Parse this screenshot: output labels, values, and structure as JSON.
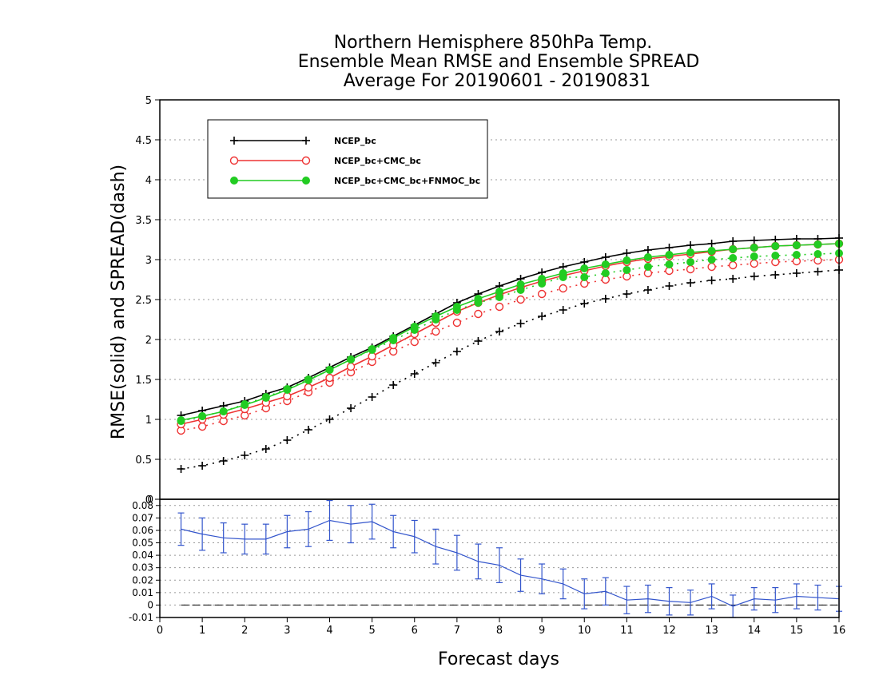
{
  "title": {
    "line1": "Northern Hemisphere 850hPa Temp.",
    "line2": "Ensemble Mean RMSE and Ensemble SPREAD",
    "line3": "Average For 20190601 - 20190831"
  },
  "chart_data": [
    {
      "type": "line",
      "ylabel": "RMSE(solid) and SPREAD(dash)",
      "xlim": [
        0,
        16
      ],
      "ylim": [
        0,
        5
      ],
      "yticks": [
        "0",
        "0.5",
        "1",
        "1.5",
        "2",
        "2.5",
        "3",
        "3.5",
        "4",
        "4.5",
        "5"
      ],
      "grid": true,
      "legend_position": "top-left",
      "x": [
        0.5,
        1,
        1.5,
        2,
        2.5,
        3,
        3.5,
        4,
        4.5,
        5,
        5.5,
        6,
        6.5,
        7,
        7.5,
        8,
        8.5,
        9,
        9.5,
        10,
        10.5,
        11,
        11.5,
        12,
        12.5,
        13,
        13.5,
        14,
        14.5,
        15,
        15.5,
        16
      ],
      "series": [
        {
          "name": "NCEP_bc",
          "color": "#000000",
          "marker": "plus",
          "rmse": [
            1.05,
            1.11,
            1.17,
            1.23,
            1.32,
            1.4,
            1.52,
            1.65,
            1.78,
            1.9,
            2.04,
            2.18,
            2.32,
            2.46,
            2.57,
            2.67,
            2.76,
            2.84,
            2.91,
            2.97,
            3.03,
            3.08,
            3.12,
            3.15,
            3.18,
            3.2,
            3.23,
            3.24,
            3.25,
            3.26,
            3.26,
            3.27
          ],
          "spread": [
            0.38,
            0.42,
            0.48,
            0.55,
            0.63,
            0.74,
            0.87,
            1.0,
            1.14,
            1.28,
            1.43,
            1.57,
            1.71,
            1.85,
            1.98,
            2.1,
            2.2,
            2.29,
            2.37,
            2.45,
            2.51,
            2.57,
            2.62,
            2.67,
            2.71,
            2.74,
            2.76,
            2.79,
            2.81,
            2.83,
            2.85,
            2.87
          ]
        },
        {
          "name": "NCEP_bc+CMC_bc",
          "color": "#ee3333",
          "marker": "open-circle",
          "rmse": [
            0.94,
            1.0,
            1.06,
            1.13,
            1.21,
            1.29,
            1.4,
            1.52,
            1.66,
            1.79,
            1.93,
            2.07,
            2.21,
            2.35,
            2.46,
            2.56,
            2.65,
            2.73,
            2.8,
            2.86,
            2.92,
            2.97,
            3.01,
            3.04,
            3.07,
            3.1,
            3.13,
            3.15,
            3.17,
            3.18,
            3.19,
            3.2
          ],
          "spread": [
            0.86,
            0.91,
            0.98,
            1.05,
            1.14,
            1.23,
            1.34,
            1.46,
            1.59,
            1.72,
            1.85,
            1.97,
            2.1,
            2.21,
            2.32,
            2.41,
            2.5,
            2.57,
            2.64,
            2.7,
            2.75,
            2.79,
            2.83,
            2.86,
            2.88,
            2.91,
            2.93,
            2.95,
            2.97,
            2.98,
            2.99,
            3.0
          ]
        },
        {
          "name": "NCEP_bc+CMC_bc+FNMOC_bc",
          "color": "#22cc22",
          "marker": "filled-circle",
          "rmse": [
            0.99,
            1.04,
            1.1,
            1.18,
            1.27,
            1.37,
            1.49,
            1.62,
            1.75,
            1.88,
            2.02,
            2.16,
            2.29,
            2.41,
            2.51,
            2.6,
            2.69,
            2.76,
            2.83,
            2.89,
            2.94,
            2.99,
            3.03,
            3.06,
            3.09,
            3.11,
            3.13,
            3.15,
            3.17,
            3.18,
            3.19,
            3.2
          ],
          "spread": [
            0.98,
            1.04,
            1.1,
            1.19,
            1.28,
            1.38,
            1.5,
            1.62,
            1.75,
            1.87,
            1.99,
            2.12,
            2.25,
            2.37,
            2.46,
            2.53,
            2.62,
            2.7,
            2.78,
            2.78,
            2.83,
            2.87,
            2.91,
            2.94,
            2.97,
            3.0,
            3.02,
            3.04,
            3.05,
            3.06,
            3.07,
            3.08
          ]
        }
      ]
    },
    {
      "type": "line",
      "xlabel": "Forecast days",
      "xlim": [
        0,
        16
      ],
      "ylim": [
        -0.01,
        0.085
      ],
      "xticks": [
        "0",
        "1",
        "2",
        "3",
        "4",
        "5",
        "6",
        "7",
        "8",
        "9",
        "10",
        "11",
        "12",
        "13",
        "14",
        "15",
        "16"
      ],
      "yticks": [
        "-0.01",
        "0",
        "0.01",
        "0.02",
        "0.03",
        "0.04",
        "0.05",
        "0.06",
        "0.07",
        "0.08"
      ],
      "top_label": "0",
      "grid": true,
      "series": [
        {
          "color": "#3355cc",
          "marker": "error-bar",
          "x": [
            0.5,
            1,
            1.5,
            2,
            2.5,
            3,
            3.5,
            4,
            4.5,
            5,
            5.5,
            6,
            6.5,
            7,
            7.5,
            8,
            8.5,
            9,
            9.5,
            10,
            10.5,
            11,
            11.5,
            12,
            12.5,
            13,
            13.5,
            14,
            14.5,
            15,
            15.5,
            16
          ],
          "values": [
            0.061,
            0.057,
            0.054,
            0.053,
            0.053,
            0.059,
            0.061,
            0.068,
            0.065,
            0.067,
            0.059,
            0.055,
            0.047,
            0.042,
            0.035,
            0.032,
            0.024,
            0.021,
            0.017,
            0.009,
            0.011,
            0.004,
            0.005,
            0.003,
            0.002,
            0.007,
            -0.001,
            0.005,
            0.004,
            0.007,
            0.006,
            0.005
          ],
          "errors": [
            0.013,
            0.013,
            0.012,
            0.012,
            0.012,
            0.013,
            0.014,
            0.016,
            0.015,
            0.014,
            0.013,
            0.013,
            0.014,
            0.014,
            0.014,
            0.014,
            0.013,
            0.012,
            0.012,
            0.012,
            0.011,
            0.011,
            0.011,
            0.011,
            0.01,
            0.01,
            0.009,
            0.009,
            0.01,
            0.01,
            0.01,
            0.01
          ]
        }
      ],
      "reference_line": 0
    }
  ]
}
